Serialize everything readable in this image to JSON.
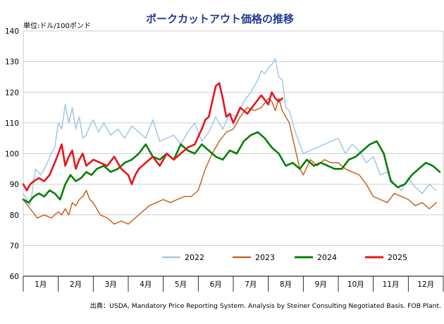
{
  "chart_data": {
    "type": "line",
    "title": "ポークカットアウト価格の推移",
    "ylabel": "単位:ドル/100ポンド",
    "ylim": [
      60,
      140
    ],
    "yticks": [
      60,
      70,
      80,
      90,
      100,
      110,
      120,
      130,
      140
    ],
    "categories": [
      "1月",
      "2月",
      "3月",
      "4月",
      "5月",
      "6月",
      "7月",
      "8月",
      "9月",
      "10月",
      "11月",
      "12月"
    ],
    "grid": true,
    "legend_position": "inside-bottom",
    "source": "出典：USDA, Mandatory Price Reporting System.  Analysis by Steiner Consulting Negotiated Basis.  FOB Plant.",
    "series": [
      {
        "name": "2022",
        "color": "#9dc3e6",
        "x": [
          0.0,
          0.2,
          0.35,
          0.5,
          0.65,
          0.8,
          0.9,
          1.0,
          1.1,
          1.2,
          1.3,
          1.4,
          1.5,
          1.6,
          1.7,
          1.8,
          1.9,
          2.0,
          2.15,
          2.3,
          2.5,
          2.7,
          2.9,
          3.1,
          3.3,
          3.5,
          3.7,
          3.9,
          4.1,
          4.3,
          4.5,
          4.7,
          4.9,
          5.1,
          5.3,
          5.5,
          5.7,
          5.9,
          6.1,
          6.3,
          6.5,
          6.7,
          6.8,
          6.9,
          7.0,
          7.1,
          7.2,
          7.3,
          7.4,
          7.5,
          7.6,
          7.7,
          7.8,
          7.9,
          8.0,
          8.2,
          8.4,
          8.6,
          8.8,
          9.0,
          9.2,
          9.4,
          9.6,
          9.8,
          10.0,
          10.2,
          10.4,
          10.6,
          10.8,
          11.0,
          11.2,
          11.4,
          11.6,
          11.8
        ],
        "values": [
          87,
          83,
          95,
          93,
          96,
          100,
          102,
          110,
          108,
          116,
          110,
          115,
          108,
          112,
          105,
          106,
          109,
          111,
          107,
          110,
          106,
          108,
          105,
          109,
          107,
          105,
          111,
          104,
          105,
          106,
          103,
          107,
          110,
          104,
          107,
          112,
          108,
          113,
          112,
          117,
          120,
          124,
          127,
          126,
          128,
          129,
          131,
          125,
          124,
          115,
          114,
          110,
          106,
          103,
          100,
          101,
          102,
          103,
          104,
          105,
          100,
          103,
          101,
          97,
          99,
          93,
          94,
          90,
          88,
          92,
          89,
          87,
          90,
          88
        ]
      },
      {
        "name": "2023",
        "color": "#c55a11",
        "x": [
          0.0,
          0.2,
          0.4,
          0.6,
          0.8,
          1.0,
          1.1,
          1.2,
          1.3,
          1.4,
          1.5,
          1.6,
          1.7,
          1.8,
          1.9,
          2.0,
          2.2,
          2.4,
          2.6,
          2.8,
          3.0,
          3.2,
          3.4,
          3.6,
          3.8,
          4.0,
          4.2,
          4.4,
          4.6,
          4.8,
          5.0,
          5.2,
          5.4,
          5.6,
          5.8,
          6.0,
          6.2,
          6.4,
          6.6,
          6.8,
          7.0,
          7.1,
          7.2,
          7.3,
          7.4,
          7.5,
          7.6,
          7.7,
          7.8,
          7.9,
          8.0,
          8.2,
          8.4,
          8.6,
          8.8,
          9.0,
          9.2,
          9.4,
          9.6,
          9.8,
          10.0,
          10.2,
          10.4,
          10.6,
          10.8,
          11.0,
          11.2,
          11.4,
          11.6,
          11.8
        ],
        "values": [
          85,
          82,
          79,
          80,
          79,
          81,
          80,
          82,
          80,
          84,
          83,
          85,
          86,
          88,
          85,
          84,
          80,
          79,
          77,
          78,
          77,
          79,
          81,
          83,
          84,
          85,
          84,
          85,
          86,
          86,
          88,
          95,
          100,
          104,
          107,
          108,
          112,
          115,
          114,
          115,
          118,
          117,
          114,
          118,
          114,
          112,
          110,
          105,
          100,
          95,
          93,
          98,
          96,
          98,
          97,
          97,
          95,
          94,
          93,
          90,
          86,
          85,
          84,
          87,
          86,
          85,
          83,
          84,
          82,
          84
        ]
      },
      {
        "name": "2024",
        "color": "#008000",
        "x": [
          0.0,
          0.15,
          0.3,
          0.45,
          0.6,
          0.75,
          0.9,
          1.05,
          1.2,
          1.35,
          1.5,
          1.65,
          1.8,
          1.95,
          2.1,
          2.3,
          2.5,
          2.7,
          2.9,
          3.1,
          3.3,
          3.5,
          3.7,
          3.9,
          4.1,
          4.3,
          4.5,
          4.7,
          4.9,
          5.1,
          5.3,
          5.5,
          5.7,
          5.9,
          6.1,
          6.3,
          6.5,
          6.7,
          6.9,
          7.1,
          7.3,
          7.5,
          7.7,
          7.9,
          8.1,
          8.3,
          8.5,
          8.7,
          8.9,
          9.1,
          9.3,
          9.5,
          9.7,
          9.9,
          10.1,
          10.3,
          10.5,
          10.7,
          10.9,
          11.1,
          11.3,
          11.5,
          11.7,
          11.9
        ],
        "values": [
          85,
          84,
          86,
          87,
          86,
          88,
          87,
          85,
          90,
          93,
          91,
          92,
          94,
          93,
          95,
          96,
          94,
          95,
          97,
          98,
          100,
          103,
          99,
          98,
          100,
          98,
          103,
          101,
          100,
          103,
          101,
          99,
          98,
          101,
          100,
          104,
          106,
          107,
          105,
          102,
          100,
          96,
          97,
          95,
          98,
          96,
          97,
          96,
          95,
          95,
          98,
          99,
          101,
          103,
          104,
          100,
          91,
          89,
          90,
          93,
          95,
          97,
          96,
          94
        ]
      },
      {
        "name": "2025",
        "color": "#e8141c",
        "x": [
          0.0,
          0.1,
          0.2,
          0.3,
          0.45,
          0.6,
          0.75,
          0.9,
          1.0,
          1.1,
          1.2,
          1.3,
          1.4,
          1.5,
          1.6,
          1.7,
          1.8,
          1.9,
          2.0,
          2.2,
          2.4,
          2.6,
          2.8,
          3.0,
          3.1,
          3.2,
          3.3,
          3.5,
          3.7,
          3.9,
          4.1,
          4.3,
          4.5,
          4.7,
          4.9,
          5.1,
          5.2,
          5.3,
          5.4,
          5.5,
          5.6,
          5.7,
          5.8,
          5.9,
          6.0,
          6.2,
          6.4,
          6.6,
          6.8,
          7.0,
          7.1,
          7.2,
          7.3,
          7.4
        ],
        "values": [
          90,
          88,
          90,
          91,
          92,
          91,
          93,
          97,
          100,
          103,
          96,
          99,
          101,
          95,
          98,
          100,
          96,
          97,
          98,
          97,
          96,
          99,
          95,
          93,
          90,
          93,
          95,
          97,
          99,
          96,
          100,
          98,
          100,
          102,
          103,
          108,
          111,
          112,
          117,
          122,
          123,
          118,
          112,
          113,
          110,
          115,
          113,
          116,
          119,
          116,
          120,
          118,
          117,
          118
        ]
      }
    ]
  }
}
